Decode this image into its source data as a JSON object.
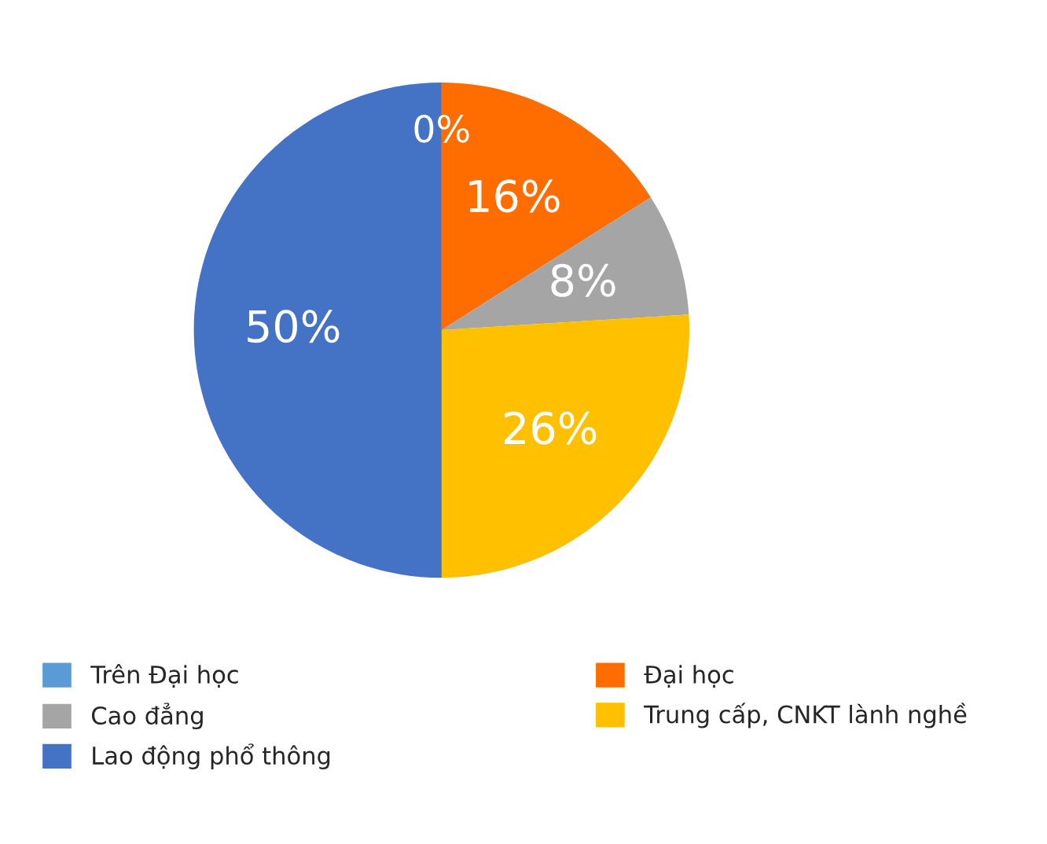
{
  "chart_data": {
    "type": "pie",
    "categories": [
      "Trên Đại học",
      "Đại học",
      "Cao đẳng",
      "Trung cấp, CNKT lành nghề",
      "Lao động phổ thông"
    ],
    "values": [
      0,
      16,
      8,
      26,
      50
    ],
    "colors": [
      "#5b9bd5",
      "#ff6d00",
      "#a5a5a5",
      "#ffc000",
      "#4472c4"
    ],
    "value_labels": [
      "0%",
      "16%",
      "8%",
      "26%",
      "50%"
    ],
    "legend": "bottom"
  }
}
